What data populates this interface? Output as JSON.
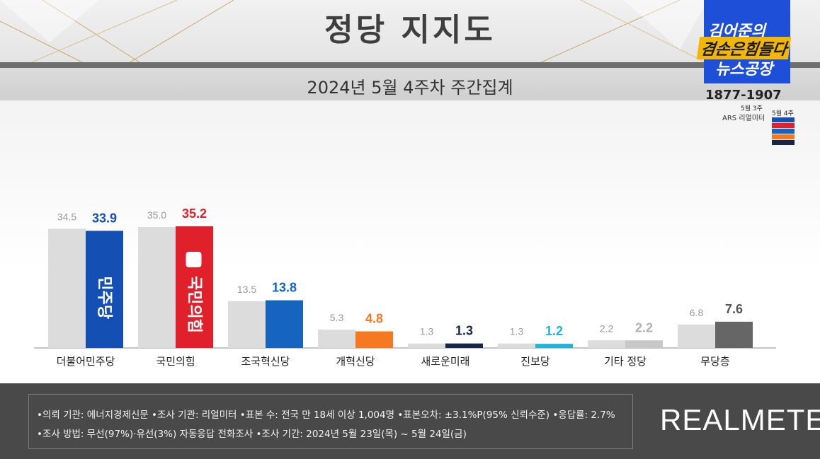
{
  "header": {
    "title": "정당 지지도",
    "subtitle": "2024년 5월 4주차 주간집계"
  },
  "logo": {
    "line1": "김어준의",
    "line2": "겸손은힘들다",
    "line3": "뉴스공장",
    "phone": "1877-1907",
    "mini_prev": "5월 3주",
    "mini_curr": "5월 4주",
    "mini_source": "ARS 리얼미터"
  },
  "colors": {
    "prev_bar": "#dcdcdc",
    "democratic": "#1450b4",
    "ppp": "#e0212b",
    "rebuilding": "#1565c0",
    "reform": "#f47920",
    "new_future": "#15264a",
    "progressive": "#23b3d8",
    "other": "#c8c8c8",
    "independent": "#666666"
  },
  "chart_data": {
    "type": "bar",
    "categories": [
      "더불어민주당",
      "국민의힘",
      "조국혁신당",
      "개혁신당",
      "새로운미래",
      "진보당",
      "기타 정당",
      "무당층"
    ],
    "series": [
      {
        "values": [
          34.5,
          35.0,
          13.5,
          5.3,
          1.3,
          1.3,
          2.2,
          6.8
        ]
      },
      {
        "values": [
          33.9,
          35.2,
          13.8,
          4.8,
          1.3,
          1.2,
          2.2,
          7.6
        ]
      }
    ],
    "prev_labels": [
      "34.5",
      "35.0",
      "13.5",
      "5.3",
      "1.3",
      "1.3",
      "2.2",
      "6.8"
    ],
    "curr_labels": [
      "33.9",
      "35.2",
      "13.8",
      "4.8",
      "1.3",
      "1.2",
      "2.2",
      "7.6"
    ],
    "curr_colors": [
      "#1450b4",
      "#e0212b",
      "#1565c0",
      "#f47920",
      "#15264a",
      "#23b3d8",
      "#c8c8c8",
      "#666666"
    ],
    "curr_label_colors": [
      "#1450b4",
      "#e0212b",
      "#1565c0",
      "#f47920",
      "#15264a",
      "#23b3d8",
      "#b4b4b4",
      "#555555"
    ],
    "bar_logos": [
      "민주당",
      "국민의힘"
    ],
    "ylim": [
      0,
      40
    ],
    "grid": false,
    "legend": "none"
  },
  "footer": {
    "line1": "•의뢰 기관: 에너지경제신문  •조사 기관: 리얼미터 •표본 수: 전국 만 18세 이상 1,004명 •표본오차: ±3.1%P(95% 신뢰수준) •응답률: 2.7%",
    "line2": "•조사 방법: 무선(97%)·유선(3%) 자동응답 전화조사 •조사 기간: 2024년 5월 23일(목) ~ 5월 24일(금)",
    "brand": "REALMETER"
  }
}
